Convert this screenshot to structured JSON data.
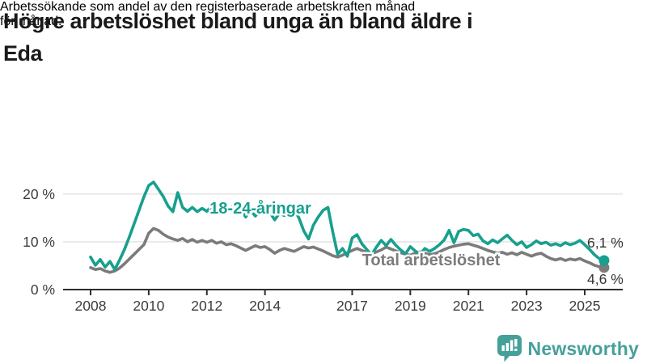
{
  "header": {
    "title_lines": [
      "Högre arbetslöshet bland unga än bland äldre i",
      "Eda"
    ],
    "subtitle_lines": [
      "Arbetssökande som andel av den registerbaserade arbetskraften månad",
      "för månad."
    ]
  },
  "chart_data": {
    "type": "line",
    "title": "Högre arbetslöshet bland unga än bland äldre i Eda",
    "subtitle": "Arbetssökande som andel av den registerbaserade arbetskraften månad för månad.",
    "unit": "%",
    "x_start_year": 2008,
    "x_step_months": 2,
    "x_ticks": [
      "2008",
      "2010",
      "2012",
      "2014",
      "2017",
      "2019",
      "2021",
      "2023",
      "2025"
    ],
    "x_tick_years": [
      2008,
      2010,
      2012,
      2014,
      2017,
      2019,
      2021,
      2023,
      2025
    ],
    "y_ticks": [
      0,
      10,
      20
    ],
    "y_tick_labels": [
      "0 %",
      "10 %",
      "20 %"
    ],
    "ylim": [
      0,
      24
    ],
    "grid": "horizontal",
    "legend": "inline-labels",
    "colors": {
      "young": "#17a08e",
      "total": "#7b7b7b",
      "grid": "#e1e1e1",
      "axis": "#2e2e2e",
      "value_label": "#333333"
    },
    "series": [
      {
        "name": "18-24-åringar",
        "color": "#17a08e",
        "end_value": 6.1,
        "end_label": "6,1 %",
        "values": [
          6.8,
          5.1,
          6.3,
          4.7,
          5.9,
          4.2,
          6.2,
          8.4,
          11.0,
          13.8,
          16.6,
          19.4,
          21.8,
          22.5,
          21.0,
          19.5,
          17.5,
          16.3,
          20.3,
          17.2,
          16.4,
          17.2,
          16.3,
          17.0,
          16.4,
          17.5,
          16.2,
          17.2,
          16.3,
          17.1,
          18.0,
          16.8,
          15.2,
          16.6,
          15.4,
          16.6,
          17.2,
          16.2,
          14.6,
          16.0,
          15.5,
          16.5,
          16.8,
          15.0,
          12.3,
          10.6,
          13.5,
          15.2,
          16.6,
          17.2,
          12.0,
          7.4,
          8.6,
          7.0,
          10.8,
          11.5,
          9.6,
          8.4,
          7.3,
          8.9,
          10.3,
          9.2,
          10.5,
          9.3,
          8.3,
          7.5,
          9.0,
          8.1,
          7.4,
          8.6,
          8.0,
          8.6,
          9.4,
          10.4,
          12.4,
          9.8,
          12.2,
          12.6,
          12.4,
          11.3,
          11.6,
          10.2,
          9.6,
          10.4,
          9.8,
          10.6,
          11.4,
          10.3,
          9.4,
          10.0,
          8.8,
          9.4,
          10.2,
          9.6,
          9.9,
          9.3,
          9.6,
          9.2,
          9.8,
          9.4,
          9.7,
          10.3,
          9.4,
          8.4,
          7.3,
          6.5,
          6.1
        ]
      },
      {
        "name": "Total arbetslöshet",
        "color": "#7b7b7b",
        "end_value": 4.6,
        "end_label": "4,6 %",
        "values": [
          4.6,
          4.2,
          4.4,
          3.9,
          3.6,
          3.9,
          4.5,
          5.4,
          6.4,
          7.4,
          8.4,
          9.4,
          11.8,
          12.8,
          12.4,
          11.6,
          11.0,
          10.6,
          10.3,
          10.7,
          10.0,
          10.5,
          9.9,
          10.3,
          9.9,
          10.3,
          9.7,
          10.0,
          9.4,
          9.6,
          9.2,
          8.7,
          8.2,
          8.7,
          9.2,
          8.8,
          9.0,
          8.4,
          7.6,
          8.2,
          8.6,
          8.3,
          8.0,
          8.5,
          9.0,
          8.7,
          8.9,
          8.5,
          8.1,
          7.6,
          7.1,
          6.8,
          7.2,
          7.7,
          8.2,
          8.6,
          8.2,
          7.8,
          7.5,
          7.9,
          8.3,
          8.9,
          8.5,
          8.1,
          7.7,
          7.4,
          7.2,
          7.6,
          7.9,
          7.6,
          7.3,
          7.5,
          7.9,
          8.4,
          8.8,
          9.1,
          9.3,
          9.5,
          9.6,
          9.3,
          9.0,
          8.6,
          8.2,
          7.9,
          7.6,
          7.8,
          7.4,
          7.7,
          7.3,
          7.8,
          7.4,
          7.0,
          7.4,
          7.6,
          7.0,
          6.5,
          6.2,
          6.5,
          6.1,
          6.4,
          6.2,
          6.5,
          6.0,
          5.6,
          5.1,
          4.8,
          4.6
        ]
      }
    ]
  },
  "branding": {
    "logo_text": "Newsworthy",
    "logo_color": "#46a09a",
    "logo_icon": "bar-chart-speech-bubble-icon"
  }
}
